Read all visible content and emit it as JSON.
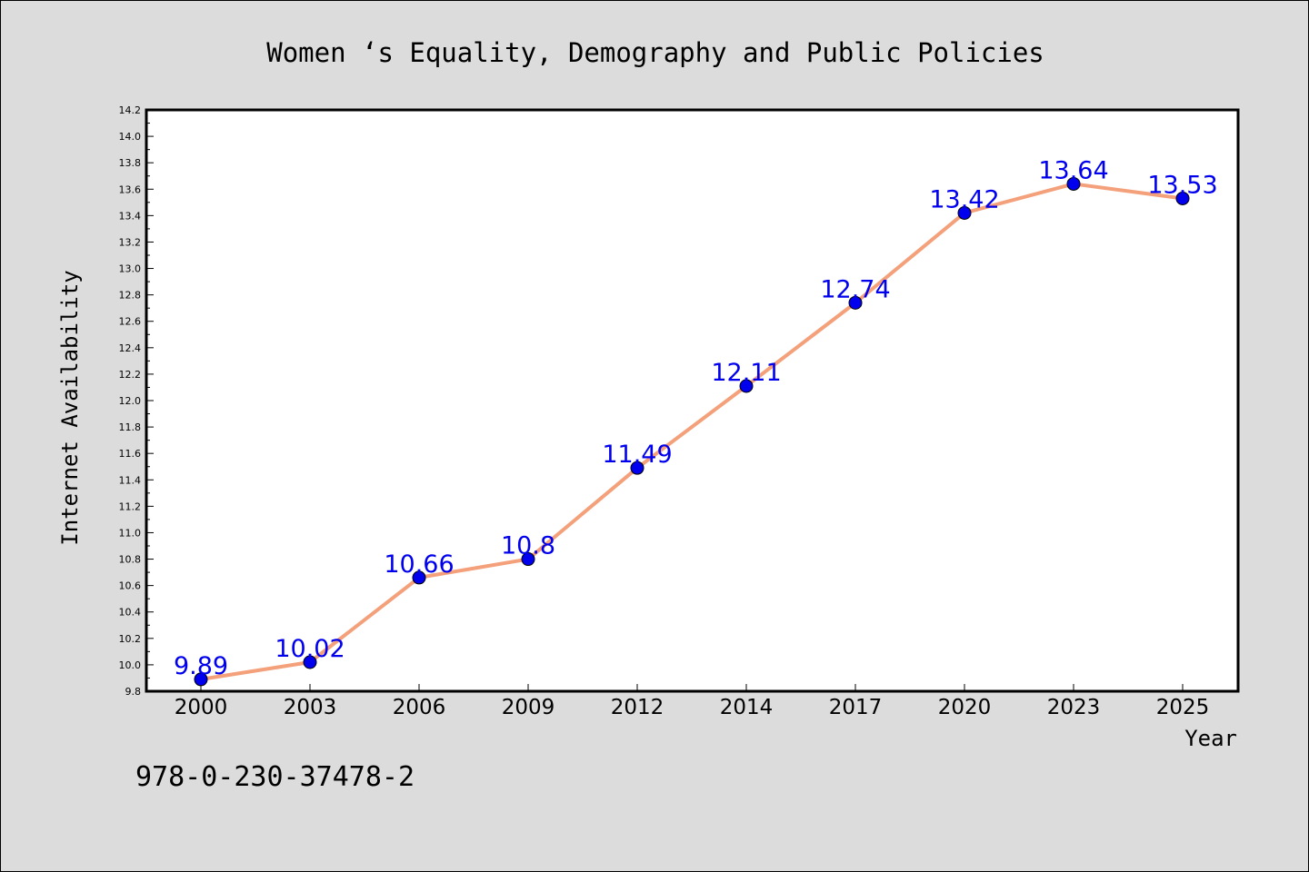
{
  "chart_data": {
    "type": "line",
    "title": "Women ‘s Equality, Demography and Public Policies",
    "xlabel": "Year",
    "ylabel": "Internet Availability",
    "categories": [
      "2000",
      "2003",
      "2006",
      "2009",
      "2012",
      "2014",
      "2017",
      "2020",
      "2023",
      "2025"
    ],
    "values": [
      9.89,
      10.02,
      10.66,
      10.8,
      11.49,
      12.11,
      12.74,
      13.42,
      13.64,
      13.53
    ],
    "data_labels": [
      "9.89",
      "10.02",
      "10.66",
      "10.8",
      "11.49",
      "12.11",
      "12.74",
      "13.42",
      "13.64",
      "13.53"
    ],
    "ylim": [
      9.8,
      14.2
    ],
    "yticks": [
      "9.8",
      "10.0",
      "10.2",
      "10.4",
      "10.6",
      "10.8",
      "11.0",
      "11.2",
      "11.4",
      "11.6",
      "11.8",
      "12.0",
      "12.2",
      "12.4",
      "12.6",
      "12.8",
      "13.0",
      "13.2",
      "13.4",
      "13.6",
      "13.8",
      "14.0",
      "14.2"
    ],
    "grid": false,
    "line_color": "#f4a07a",
    "marker_color": "#0000ee",
    "label_color": "#0000ee"
  },
  "footer": {
    "isbn": "978-0-230-37478-2"
  }
}
